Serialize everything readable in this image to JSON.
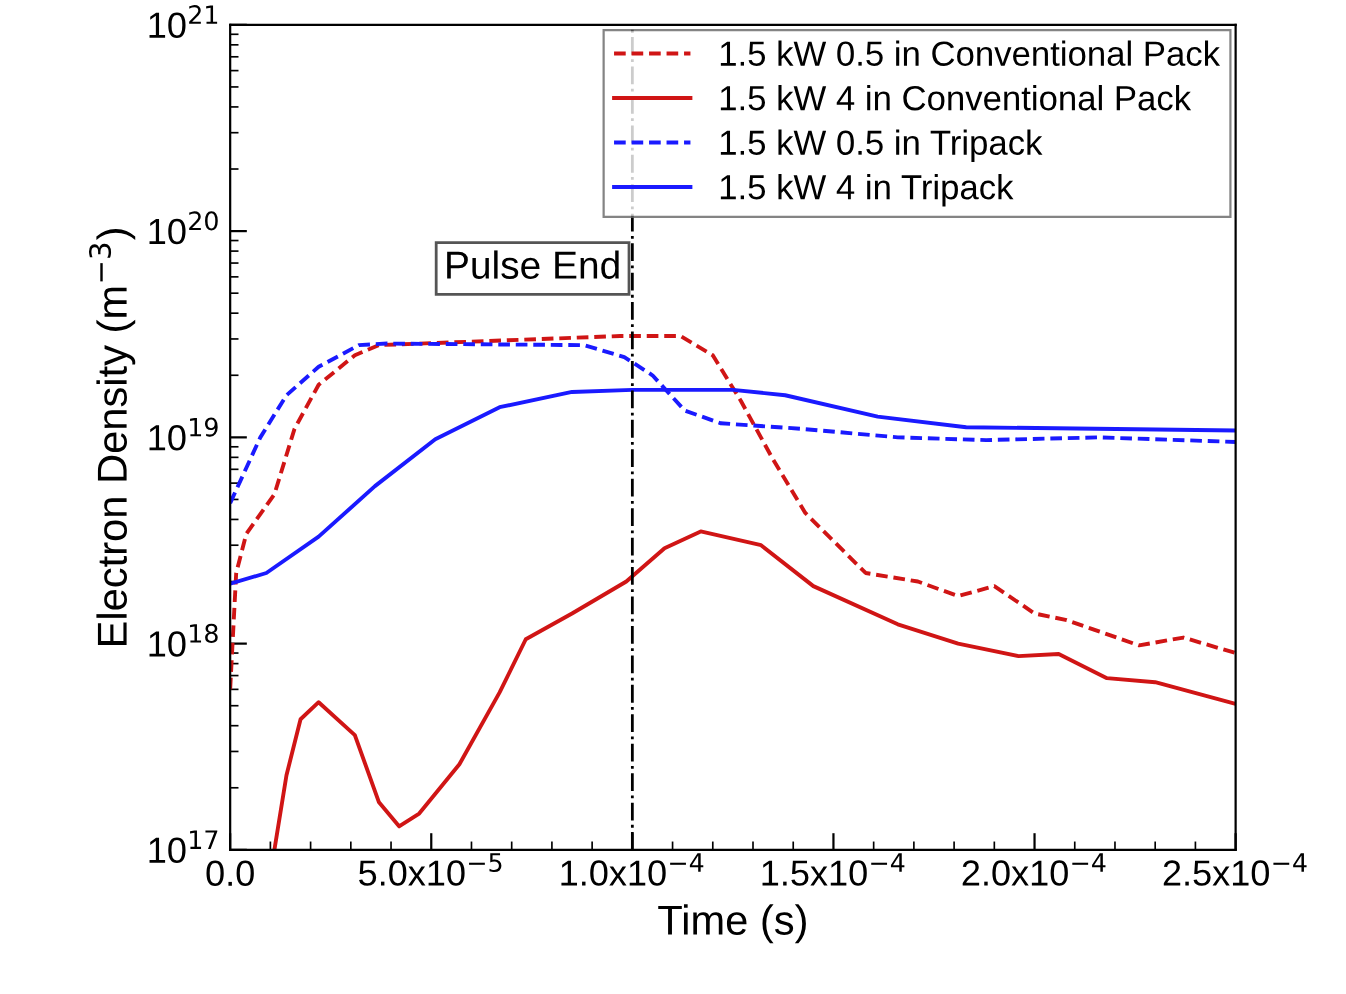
{
  "chart_data": {
    "type": "line",
    "xlabel": "Time (s)",
    "ylabel": "Electron Density (m$^{−3}$)",
    "log": "y",
    "xlim": [
      0,
      0.00025
    ],
    "ylim": [
      1e+17,
      1e+21
    ],
    "xticks": [
      {
        "value": 0,
        "label": "0.0"
      },
      {
        "value": 5e-05,
        "label": "5.0x10$^{−5}$"
      },
      {
        "value": 0.0001,
        "label": "1.0x10$^{−4}$"
      },
      {
        "value": 0.00015,
        "label": "1.5x10$^{−4}$"
      },
      {
        "value": 0.0002,
        "label": "2.0x10$^{−4}$"
      },
      {
        "value": 0.00025,
        "label": "2.5x10$^{−4}$"
      }
    ],
    "yticks": [
      {
        "value": 1e+17,
        "label": "10$^{17}$"
      },
      {
        "value": 1e+18,
        "label": "10$^{18}$"
      },
      {
        "value": 1e+19,
        "label": "10$^{19}$"
      },
      {
        "value": 1e+20,
        "label": "10$^{20}$"
      },
      {
        "value": 1e+21,
        "label": "10$^{21}$"
      }
    ],
    "grid": false,
    "legend": "top right",
    "marker": "none",
    "ref_lines": [
      {
        "axis": "x",
        "value": 0.0001,
        "label": "Pulse End",
        "color": "#000000",
        "line_style": "dashdot"
      }
    ],
    "series": [
      {
        "name": "1.5 kW 0.5 in Conventional Pack",
        "color": "#d01515",
        "line_style": "dashed",
        "x": [
          0,
          1.5e-06,
          4e-06,
          1.1e-05,
          1.6e-05,
          2.2e-05,
          3.1e-05,
          3.7e-05,
          9.7e-05,
          0.000112,
          0.00012,
          0.000127,
          0.000135,
          0.000143,
          0.000158,
          0.000171,
          0.000181,
          0.00019,
          0.0002,
          0.000208,
          0.000226,
          0.000237,
          0.00025
        ],
        "values": [
          6e+17,
          2.2e+18,
          3.4e+18,
          5.3e+18,
          1.1e+19,
          1.8e+19,
          2.5e+19,
          2.8e+19,
          3.1e+19,
          3.1e+19,
          2.5e+19,
          1.5e+19,
          7.8e+18,
          4.3e+18,
          2.2e+18,
          2e+18,
          1.7e+18,
          1.9e+18,
          1.4e+18,
          1.3e+18,
          9.8e+17,
          1.07e+18,
          9e+17
        ]
      },
      {
        "name": "1.5 kW 4 in Conventional Pack",
        "color": "#d01515",
        "line_style": "solid",
        "x": [
          1.1e-05,
          1.4e-05,
          1.75e-05,
          2.2e-05,
          3.1e-05,
          3.7e-05,
          4.2e-05,
          4.7e-05,
          5.7e-05,
          6.7e-05,
          7.35e-05,
          8.5e-05,
          9.85e-05,
          0.000108,
          0.000117,
          0.000132,
          0.000145,
          0.000166,
          0.000181,
          0.000196,
          0.000206,
          0.000218,
          0.00023,
          0.00025
        ],
        "values": [
          1e+17,
          2.3e+17,
          4.3e+17,
          5.2e+17,
          3.6e+17,
          1.7e+17,
          1.3e+17,
          1.5e+17,
          2.6e+17,
          5.8e+17,
          1.05e+18,
          1.4e+18,
          2e+18,
          2.9e+18,
          3.5e+18,
          3e+18,
          1.9e+18,
          1.24e+18,
          1e+18,
          8.7e+17,
          8.9e+17,
          6.8e+17,
          6.5e+17,
          5.1e+17
        ]
      },
      {
        "name": "1.5 kW 0.5 in Tripack",
        "color": "#1a1aff",
        "line_style": "dashed",
        "x": [
          0,
          7.5e-06,
          1.4e-05,
          2.2e-05,
          3.2e-05,
          3.9e-05,
          8.8e-05,
          9.8e-05,
          0.000105,
          0.000113,
          0.000122,
          0.000142,
          0.000166,
          0.000188,
          0.000216,
          0.00025
        ],
        "values": [
          4.8e+18,
          1e+19,
          1.6e+19,
          2.2e+19,
          2.8e+19,
          2.85e+19,
          2.8e+19,
          2.45e+19,
          2e+19,
          1.35e+19,
          1.17e+19,
          1.1e+19,
          1e+19,
          9.7e+18,
          1e+19,
          9.5e+18
        ]
      },
      {
        "name": "1.5 kW 4 in Tripack",
        "color": "#1a1aff",
        "line_style": "solid",
        "x": [
          0,
          9e-06,
          2.2e-05,
          3.6e-05,
          5.1e-05,
          6.7e-05,
          8.5e-05,
          0.0001,
          0.000125,
          0.000138,
          0.000161,
          0.000183,
          0.00025
        ],
        "values": [
          1.95e+18,
          2.2e+18,
          3.3e+18,
          5.8e+18,
          9.8e+18,
          1.4e+19,
          1.66e+19,
          1.7e+19,
          1.7e+19,
          1.6e+19,
          1.26e+19,
          1.12e+19,
          1.08e+19
        ]
      }
    ]
  }
}
